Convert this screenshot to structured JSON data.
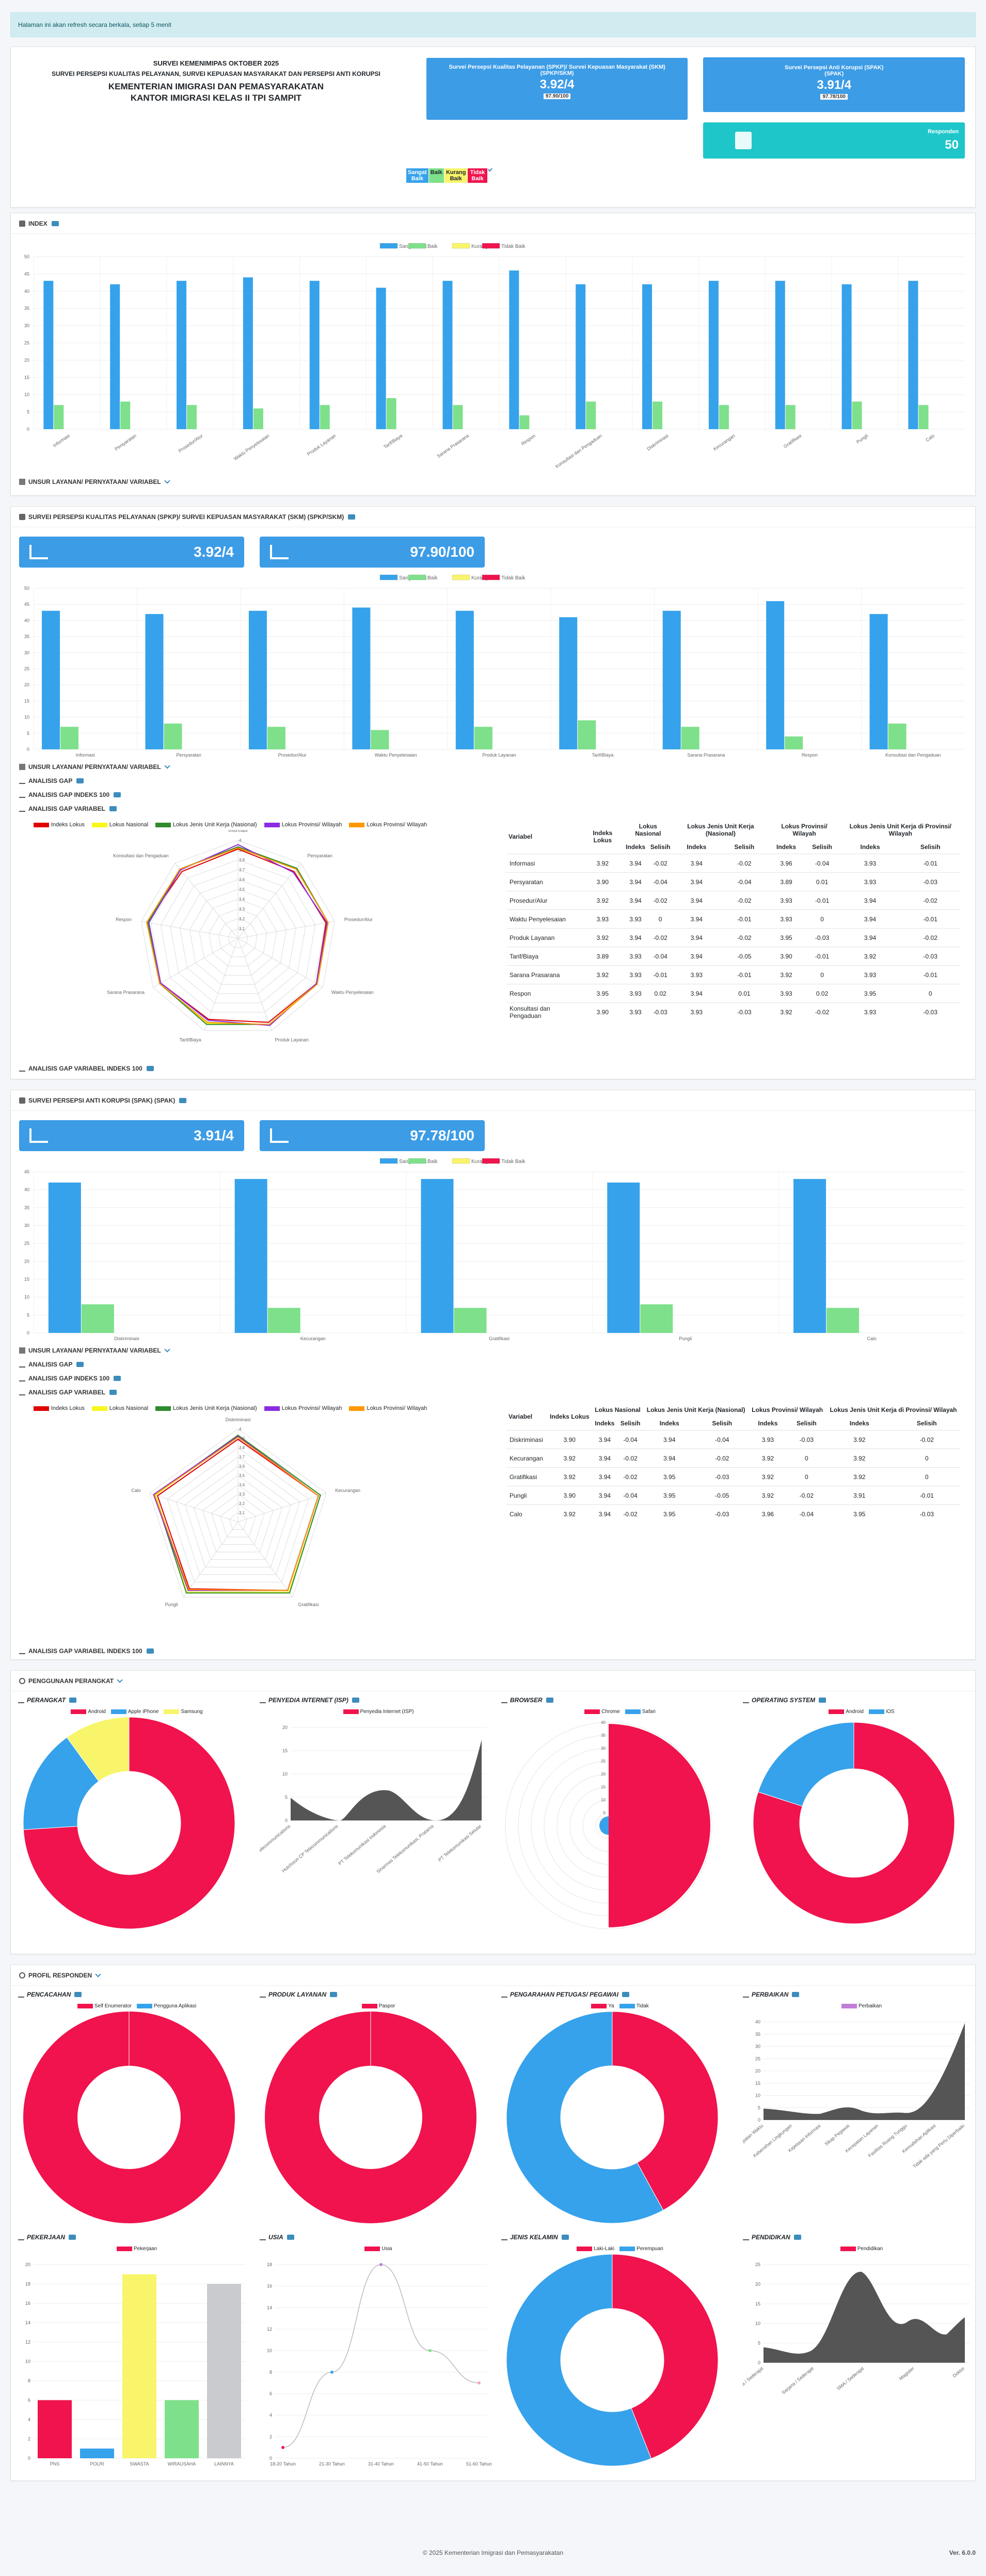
{
  "alert": "Halaman ini akan refresh secara berkala, setiap 5 menit",
  "header": {
    "line1": "SURVEI KEMENIMIPAS OKTOBER 2025",
    "line2": "SURVEI PERSEPSI KUALITAS PELAYANAN, SURVEI KEPUASAN MASYARAKAT DAN PERSEPSI ANTI KORUPSI",
    "line3": "KEMENTERIAN IMIGRASI DAN PEMASYARAKATAN",
    "line4": "KANTOR IMIGRASI KELAS II TPI SAMPIT"
  },
  "kpi": {
    "spkp_title": "Survei Persepsi Kualitas Pelayanan (SPKP)/ Survei Kepuasan Masyarakat (SKM)",
    "spkp_sub": "(SPKP/SKM)",
    "spkp_score": "3.92/4",
    "spkp_pct": "97.90/100",
    "spak_title": "Survei Persepsi Anti Korupsi (SPAK)",
    "spak_sub": "(SPAK)",
    "spak_score": "3.91/4",
    "spak_pct": "97.78/100",
    "resp_label": "Responden",
    "resp_value": "50"
  },
  "cats": [
    "Sangat Baik",
    "Baik",
    "Kurang Baik",
    "Tidak Baik"
  ],
  "colors": {
    "sb": "#36a2eb",
    "b": "#7ee08a",
    "kb": "#f8f56b",
    "tb": "#f0134d",
    "bg": "#f4f6f9"
  },
  "sections": {
    "index": "INDEX",
    "unsur": "UNSUR LAYANAN/ PERNYATAAN/ VARIABEL",
    "skm": "SURVEI PERSEPSI KUALITAS PELAYANAN (SPKP)/ SURVEI KEPUASAN MASYARAKAT (SKM) (SPKP/SKM)",
    "gap": "ANALISIS GAP",
    "gap100": "ANALISIS GAP INDEKS 100",
    "gapvar": "ANALISIS GAP VARIABEL",
    "gapvar100": "ANALISIS GAP VARIABEL INDEKS 100",
    "spak": "SURVEI PERSEPSI ANTI KORUPSI (SPAK) (SPAK)",
    "perangkat": "PENGGUNAAN PERANGKAT",
    "profil": "PROFIL RESPONDEN"
  },
  "chart_data": [
    {
      "type": "bar",
      "id": "index",
      "categories": [
        "Informasi",
        "Persyaratan",
        "Prosedur/Alur",
        "Waktu Penyelesaian",
        "Produk Layanan",
        "Tarif/Biaya",
        "Sarana Prasarana",
        "Respon",
        "Konsultasi dan Pengaduan",
        "Diskriminasi",
        "Kecurangan",
        "Gratifikasi",
        "Pungli",
        "Calo"
      ],
      "series": [
        {
          "name": "Sangat Baik",
          "values": [
            43,
            42,
            43,
            44,
            43,
            41,
            43,
            46,
            42,
            42,
            43,
            43,
            42,
            43
          ]
        },
        {
          "name": "Baik",
          "values": [
            7,
            8,
            7,
            6,
            7,
            9,
            7,
            4,
            8,
            8,
            7,
            7,
            8,
            7
          ]
        },
        {
          "name": "Kurang Baik",
          "values": [
            0,
            0,
            0,
            0,
            0,
            0,
            0,
            0,
            0,
            0,
            0,
            0,
            0,
            0
          ]
        },
        {
          "name": "Tidak Baik",
          "values": [
            0,
            0,
            0,
            0,
            0,
            0,
            0,
            0,
            0,
            0,
            0,
            0,
            0,
            0
          ]
        }
      ],
      "ylim": [
        0,
        50
      ]
    },
    {
      "type": "bar",
      "id": "skm",
      "categories": [
        "Informasi",
        "Persyaratan",
        "Prosedur/Alur",
        "Waktu Penyelesaian",
        "Produk Layanan",
        "Tarif/Biaya",
        "Sarana Prasarana",
        "Respon",
        "Konsultasi dan Pengaduan"
      ],
      "series": [
        {
          "name": "Sangat Baik",
          "values": [
            43,
            42,
            43,
            44,
            43,
            41,
            43,
            46,
            42
          ]
        },
        {
          "name": "Baik",
          "values": [
            7,
            8,
            7,
            6,
            7,
            9,
            7,
            4,
            8
          ]
        },
        {
          "name": "Kurang Baik",
          "values": [
            0,
            0,
            0,
            0,
            0,
            0,
            0,
            0,
            0
          ]
        },
        {
          "name": "Tidak Baik",
          "values": [
            0,
            0,
            0,
            0,
            0,
            0,
            0,
            0,
            0
          ]
        }
      ],
      "ylim": [
        0,
        50
      ]
    },
    {
      "type": "bar",
      "id": "spak",
      "categories": [
        "Diskriminasi",
        "Kecurangan",
        "Gratifikasi",
        "Pungli",
        "Calo"
      ],
      "series": [
        {
          "name": "Sangat Baik",
          "values": [
            42,
            43,
            43,
            42,
            43
          ]
        },
        {
          "name": "Baik",
          "values": [
            8,
            7,
            7,
            8,
            7
          ]
        },
        {
          "name": "Kurang Baik",
          "values": [
            0,
            0,
            0,
            0,
            0
          ]
        },
        {
          "name": "Tidak Baik",
          "values": [
            0,
            0,
            0,
            0,
            0
          ]
        }
      ],
      "ylim": [
        0,
        45
      ]
    }
  ],
  "radar_legend": [
    "Indeks Lokus",
    "Lokus Nasional",
    "Lokus Jenis Unit Kerja (Nasional)",
    "Lokus Provinsi/ Wilayah",
    "Lokus Provinsi/ Wilayah"
  ],
  "radar_colors": [
    "#e00000",
    "#f7f71c",
    "#2e8b2e",
    "#8a2be2",
    "#ff9800"
  ],
  "radar_ticks": [
    "4",
    "3.9",
    "3.8",
    "3.7",
    "3.6",
    "3.5",
    "3.4",
    "3.3",
    "3.2",
    "3.1"
  ],
  "table_head": {
    "var": "Variabel",
    "idx": "Indeks Lokus",
    "nas": "Lokus Nasional",
    "juk": "Lokus Jenis Unit Kerja (Nasional)",
    "prov": "Lokus Provinsi/ Wilayah",
    "juk_prov": "Lokus Jenis Unit Kerja di Provinsi/ Wilayah",
    "i": "Indeks",
    "s": "Selisih"
  },
  "skm_table": [
    [
      "Informasi",
      "3.92",
      "3.94",
      "-0.02",
      "3.94",
      "-0.02",
      "3.96",
      "-0.04",
      "3.93",
      "-0.01"
    ],
    [
      "Persyaratan",
      "3.90",
      "3.94",
      "-0.04",
      "3.94",
      "-0.04",
      "3.89",
      "0.01",
      "3.93",
      "-0.03"
    ],
    [
      "Prosedur/Alur",
      "3.92",
      "3.94",
      "-0.02",
      "3.94",
      "-0.02",
      "3.93",
      "-0.01",
      "3.94",
      "-0.02"
    ],
    [
      "Waktu Penyelesaian",
      "3.93",
      "3.93",
      "0",
      "3.94",
      "-0.01",
      "3.93",
      "0",
      "3.94",
      "-0.01"
    ],
    [
      "Produk Layanan",
      "3.92",
      "3.94",
      "-0.02",
      "3.94",
      "-0.02",
      "3.95",
      "-0.03",
      "3.94",
      "-0.02"
    ],
    [
      "Tarif/Biaya",
      "3.89",
      "3.93",
      "-0.04",
      "3.94",
      "-0.05",
      "3.90",
      "-0.01",
      "3.92",
      "-0.03"
    ],
    [
      "Sarana Prasarana",
      "3.92",
      "3.93",
      "-0.01",
      "3.93",
      "-0.01",
      "3.92",
      "0",
      "3.93",
      "-0.01"
    ],
    [
      "Respon",
      "3.95",
      "3.93",
      "0.02",
      "3.94",
      "0.01",
      "3.93",
      "0.02",
      "3.95",
      "0"
    ],
    [
      "Konsultasi dan Pengaduan",
      "3.90",
      "3.93",
      "-0.03",
      "3.93",
      "-0.03",
      "3.92",
      "-0.02",
      "3.93",
      "-0.03"
    ]
  ],
  "spak_table": [
    [
      "Diskriminasi",
      "3.90",
      "3.94",
      "-0.04",
      "3.94",
      "-0.04",
      "3.93",
      "-0.03",
      "3.92",
      "-0.02"
    ],
    [
      "Kecurangan",
      "3.92",
      "3.94",
      "-0.02",
      "3.94",
      "-0.02",
      "3.92",
      "0",
      "3.92",
      "0"
    ],
    [
      "Gratifikasi",
      "3.92",
      "3.94",
      "-0.02",
      "3.95",
      "-0.03",
      "3.92",
      "0",
      "3.92",
      "0"
    ],
    [
      "Pungli",
      "3.90",
      "3.94",
      "-0.04",
      "3.95",
      "-0.05",
      "3.92",
      "-0.02",
      "3.91",
      "-0.01"
    ],
    [
      "Calo",
      "3.92",
      "3.94",
      "-0.02",
      "3.95",
      "-0.03",
      "3.96",
      "-0.04",
      "3.95",
      "-0.03"
    ]
  ],
  "perangkat": {
    "t1": "PERANGKAT",
    "t2": "PENYEDIA INTERNET (ISP)",
    "t3": "BROWSER",
    "t4": "OPERATING SYSTEM",
    "l1": [
      "Android",
      "Apple iPhone",
      "Samsung"
    ],
    "l2": [
      "Penyedia Internet (ISP)"
    ],
    "l3": [
      "Chrome",
      "Safari"
    ],
    "l4": [
      "Android",
      "iOS"
    ],
    "v1": [
      74,
      16,
      10
    ],
    "v3": [
      0,
      40
    ],
    "v4": [
      80,
      20
    ],
    "isp_x": [
      "Hutchison CP Telecommunications",
      "Hutchison CP Telecommunications",
      "PT Telekomunikasi Indonesia",
      "Sinarmas Telekomunikasi, Pratama",
      "PT Telekomunikasi Selular"
    ],
    "isp_y": [
      "20",
      "15",
      "10",
      "5",
      "0"
    ],
    "browser_ticks": [
      "40",
      "35",
      "30",
      "25",
      "20",
      "15",
      "10",
      "5",
      "0"
    ]
  },
  "profil": {
    "t1": "PENCACAHAN",
    "t2": "PRODUK LAYANAN",
    "t3": "PENGARAHAN PETUGAS/ PEGAWAI",
    "t4": "PERBAIKAN",
    "t5": "PEKERJAAN",
    "t6": "USIA",
    "t7": "JENIS KELAMIN",
    "t8": "PENDIDIKAN",
    "l1": [
      "Self Enumerator",
      "Pengguna Aplikasi"
    ],
    "l2": [
      "Paspor"
    ],
    "l3": [
      "Ya",
      "Tidak"
    ],
    "l4": [
      "Perbaikan"
    ],
    "l5": [
      "Pekerjaan"
    ],
    "l6": [
      "Usia"
    ],
    "l7": [
      "Laki-Laki",
      "Perempuan"
    ],
    "l8": [
      "Pendidikan"
    ],
    "v1": [
      100,
      0
    ],
    "v2": [
      100
    ],
    "v3": [
      42,
      58
    ],
    "v7": [
      44,
      56
    ],
    "job_x": [
      "PNS",
      "POLRI",
      "SWASTA",
      "WIRAUSAHA",
      "LAINNYA"
    ],
    "job_v": [
      6,
      1,
      19,
      6,
      18
    ],
    "job_y": [
      "20",
      "18",
      "16",
      "14",
      "12",
      "10",
      "8",
      "6",
      "4",
      "2",
      "0"
    ],
    "age_x": [
      "18-20 Tahun",
      "21-30 Tahun",
      "31-40 Tahun",
      "41-50 Tahun",
      "51-60 Tahun"
    ],
    "age_v": [
      1,
      8,
      18,
      10,
      7
    ],
    "age_y": [
      "18",
      "16",
      "14",
      "12",
      "10",
      "8",
      "6",
      "4",
      "2",
      "0"
    ],
    "perb_x": [
      "Ketepatan Waktu",
      "Kebersihan Lingkungan",
      "Kejelasan Informasi",
      "Sikap Pegawai",
      "Kecepatan Layanan",
      "Fasilitas Ruang Tunggu",
      "Kemudahan Aplikasi",
      "Tidak ada yang Perlu Diperbaiki"
    ],
    "perb_y": [
      "40",
      "35",
      "30",
      "25",
      "20",
      "15",
      "10",
      "5",
      "0"
    ],
    "pend_x": [
      "Diploma / Sederajat",
      "Sarjana / Sederajat",
      "SMA / Sederajat",
      "Magister",
      "Doktor"
    ],
    "pend_y": [
      "25",
      "20",
      "15",
      "10",
      "5",
      "0"
    ]
  },
  "footer": {
    "copy": "© 2025 Kementerian Imigrasi dan Pemasyarakatan",
    "ver": "Ver. 6.0.0"
  }
}
